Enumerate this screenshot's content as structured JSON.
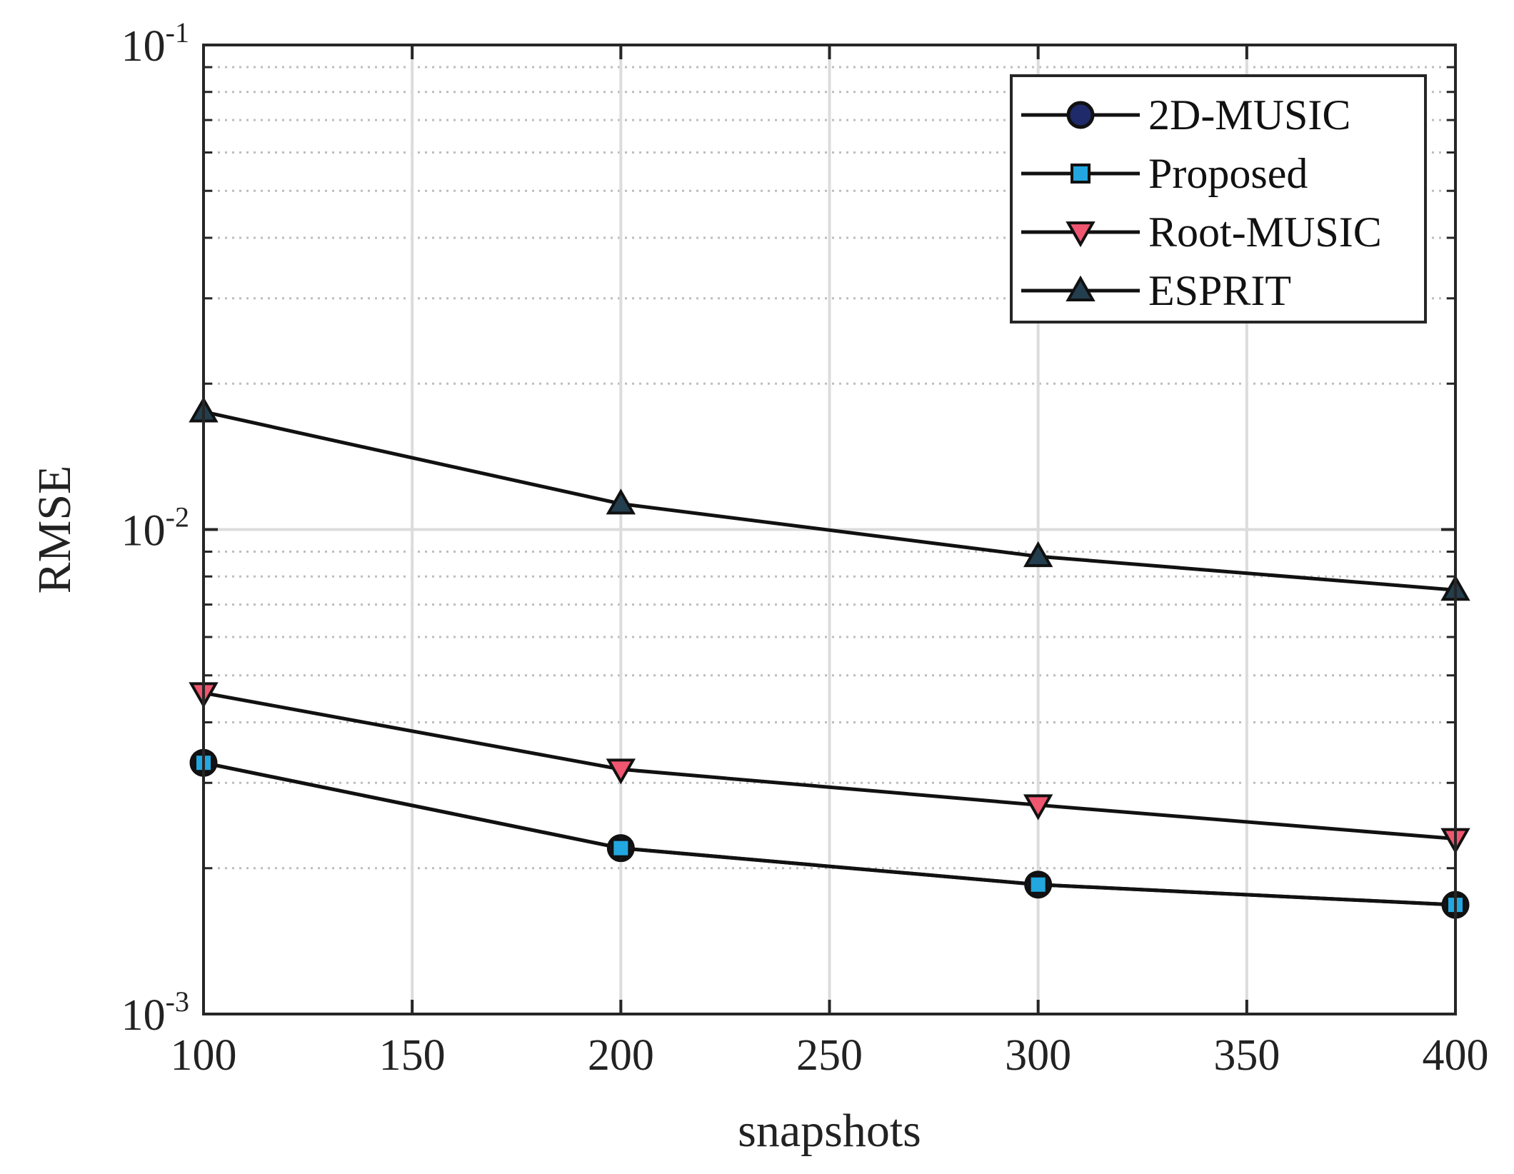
{
  "chart_data": {
    "type": "line",
    "title": "",
    "xlabel": "snapshots",
    "ylabel": "RMSE",
    "x": [
      100,
      200,
      300,
      400
    ],
    "xlim": [
      100,
      400
    ],
    "xticks": [
      100,
      150,
      200,
      250,
      300,
      350,
      400
    ],
    "xtick_labels": [
      "100",
      "150",
      "200",
      "250",
      "300",
      "350",
      "400"
    ],
    "yscale": "log",
    "ylim": [
      0.001,
      0.1
    ],
    "yticks": [
      0.001,
      0.01,
      0.1
    ],
    "ytick_labels": [
      {
        "base": "10",
        "exp": "-3"
      },
      {
        "base": "10",
        "exp": "-2"
      },
      {
        "base": "10",
        "exp": "-1"
      }
    ],
    "grid": true,
    "minor_grid": true,
    "legend_position": "top-right",
    "series": [
      {
        "name": "2D-MUSIC",
        "marker": "circle",
        "color": "#1f2a6b",
        "values": [
          0.0033,
          0.0022,
          0.00185,
          0.00168
        ]
      },
      {
        "name": "Proposed",
        "marker": "square",
        "color": "#22a7e0",
        "values": [
          0.0033,
          0.0022,
          0.00185,
          0.00168
        ]
      },
      {
        "name": "Root-MUSIC",
        "marker": "triangle-down",
        "color": "#f0566f",
        "values": [
          0.0046,
          0.0032,
          0.0027,
          0.0023
        ]
      },
      {
        "name": "ESPRIT",
        "marker": "triangle-up",
        "color": "#233e4e",
        "values": [
          0.0175,
          0.0113,
          0.0088,
          0.0075
        ]
      }
    ]
  }
}
